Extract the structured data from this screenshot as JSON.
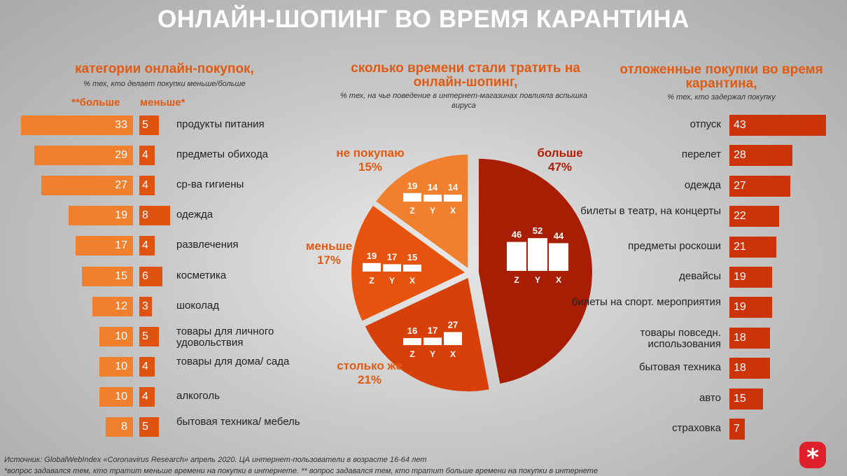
{
  "title": "ОНЛАЙН-ШОПИНГ ВО ВРЕМЯ КАРАНТИНА",
  "colors": {
    "orange_light": "#f07f2e",
    "orange": "#e0520f",
    "red": "#cc3308",
    "dark_red": "#a81e04"
  },
  "footer": {
    "source": "Источник: GlobalWebIndex «Coronavirus Research» апрель 2020. ЦА интернет-пользователи в возрасте 16-64 лет",
    "note": "*вопрос задавался тем, кто тратит меньше времени на покупки в интернете. ** вопрос задавался тем, кто тратит больше времени на покупки в интернете"
  },
  "chart_data": [
    {
      "type": "bar",
      "title": "категории онлайн-покупок,",
      "subtitle": "% тех, кто делает покупки меньше/больше",
      "legend": [
        "**больше",
        "меньше*"
      ],
      "categories": [
        "продукты питания",
        "предметы обихода",
        "ср-ва гигиены",
        "одежда",
        "развлечения",
        "косметика",
        "шоколад",
        "товары для личного удовольствия",
        "товары для дома/ сада",
        "алкоголь",
        "бытовая техника/ мебель"
      ],
      "series": [
        {
          "name": "**больше",
          "values": [
            33,
            29,
            27,
            19,
            17,
            15,
            12,
            10,
            10,
            10,
            8
          ]
        },
        {
          "name": "меньше*",
          "values": [
            5,
            4,
            4,
            8,
            4,
            6,
            3,
            5,
            4,
            4,
            5
          ]
        }
      ]
    },
    {
      "type": "pie",
      "title": "сколько времени стали тратить на онлайн-шопинг,",
      "subtitle": "% тех, на чье поведение в интернет-магазинах повлияла вспышка вируса",
      "slices": [
        {
          "label": "больше",
          "value": 47,
          "pct": "47%",
          "generations": [
            "Z",
            "Y",
            "X"
          ],
          "gen_values": [
            46,
            52,
            44
          ],
          "color": "#a81e04"
        },
        {
          "label": "столько же",
          "value": 21,
          "pct": "21%",
          "generations": [
            "Z",
            "Y",
            "X"
          ],
          "gen_values": [
            16,
            17,
            27
          ],
          "color": "#d8400a"
        },
        {
          "label": "меньше",
          "value": 17,
          "pct": "17%",
          "generations": [
            "Z",
            "Y",
            "X"
          ],
          "gen_values": [
            19,
            17,
            15
          ],
          "color": "#e6530e"
        },
        {
          "label": "не покупаю",
          "value": 15,
          "pct": "15%",
          "generations": [
            "Z",
            "Y",
            "X"
          ],
          "gen_values": [
            19,
            14,
            14
          ],
          "color": "#f07f2e"
        }
      ]
    },
    {
      "type": "bar",
      "title": "отложенные покупки во время карантина,",
      "subtitle": "% тех, кто задержал покупку",
      "categories": [
        "отпуск",
        "перелет",
        "одежда",
        "билеты в театр, на концерты",
        "предметы роскоши",
        "девайсы",
        "билеты на спорт. мероприятия",
        "товары повседн. использования",
        "бытовая техника",
        "авто",
        "страховка"
      ],
      "values": [
        43,
        28,
        27,
        22,
        21,
        19,
        19,
        18,
        18,
        15,
        7
      ]
    }
  ]
}
